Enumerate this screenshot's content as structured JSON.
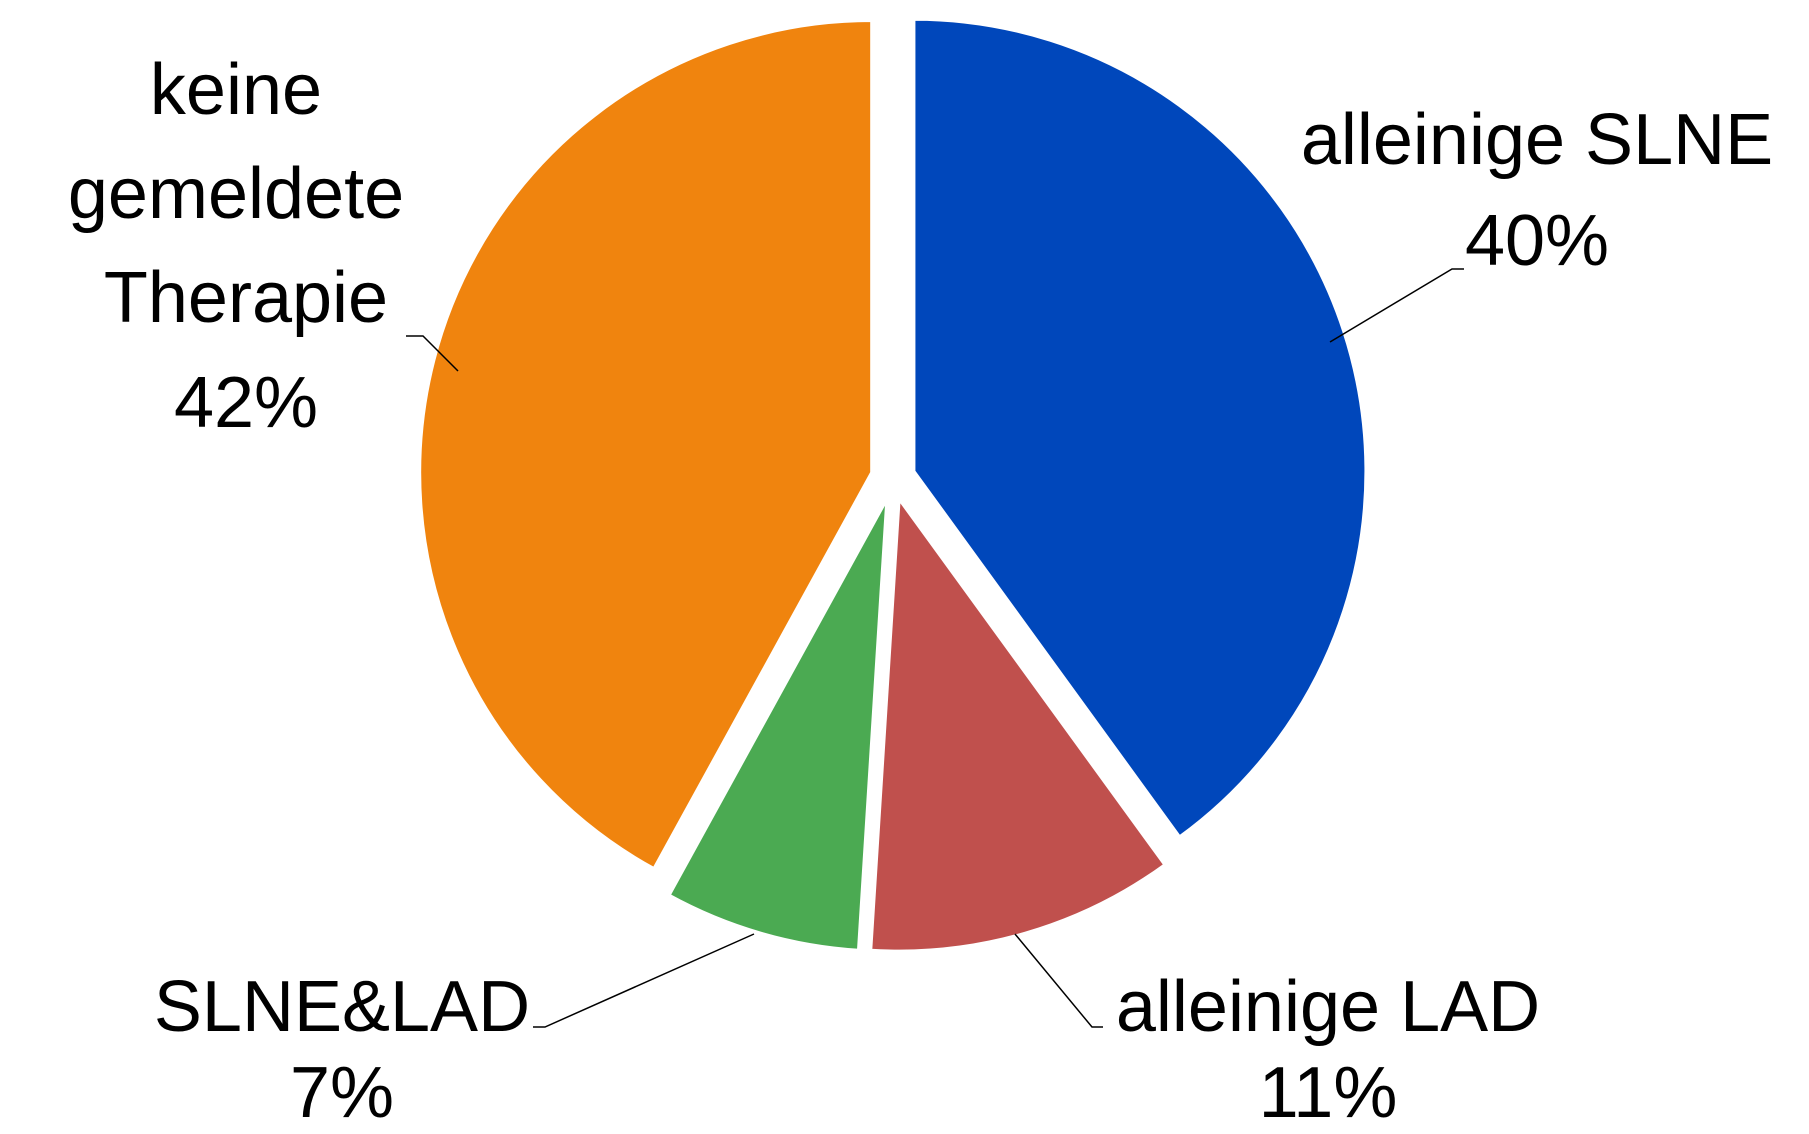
{
  "chart_data": {
    "type": "pie",
    "categories": [
      "alleinige SLNE",
      "alleinige LAD",
      "SLNE&LAD",
      "keine gemeldete Therapie"
    ],
    "values": [
      40,
      11,
      7,
      42
    ],
    "value_labels": [
      "40%",
      "11%",
      "7%",
      "42%"
    ],
    "colors": [
      "#0047bb",
      "#c0504d",
      "#4baa52",
      "#f0840e"
    ]
  }
}
